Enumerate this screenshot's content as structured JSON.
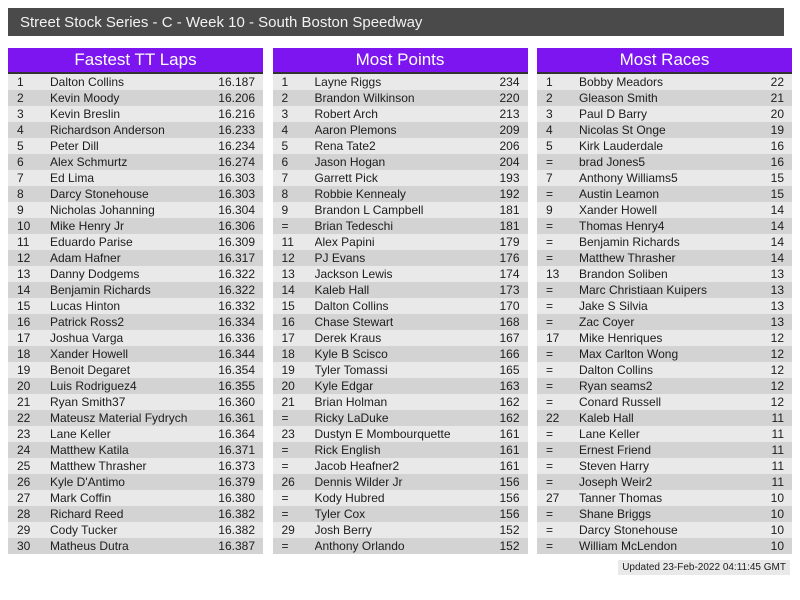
{
  "title": "Street Stock Series - C - Week 10 - South Boston Speedway",
  "footer": {
    "updated": "Updated 23-Feb-2022 04:11:45 GMT"
  },
  "colors": {
    "title_bar": "#4A4A4A",
    "header_accent": "#7C15F0",
    "row_odd": "#E9E9E9",
    "row_even": "#D3D3D3"
  },
  "boards": [
    {
      "title": "Fastest TT Laps",
      "rows": [
        {
          "rank": "1",
          "name": "Dalton Collins",
          "value": "16.187"
        },
        {
          "rank": "2",
          "name": "Kevin Moody",
          "value": "16.206"
        },
        {
          "rank": "3",
          "name": "Kevin Breslin",
          "value": "16.216"
        },
        {
          "rank": "4",
          "name": "Richardson Anderson",
          "value": "16.233"
        },
        {
          "rank": "5",
          "name": "Peter Dill",
          "value": "16.234"
        },
        {
          "rank": "6",
          "name": "Alex Schmurtz",
          "value": "16.274"
        },
        {
          "rank": "7",
          "name": "Ed Lima",
          "value": "16.303"
        },
        {
          "rank": "8",
          "name": "Darcy Stonehouse",
          "value": "16.303"
        },
        {
          "rank": "9",
          "name": "Nicholas Johanning",
          "value": "16.304"
        },
        {
          "rank": "10",
          "name": "Mike Henry Jr",
          "value": "16.306"
        },
        {
          "rank": "11",
          "name": "Eduardo Parise",
          "value": "16.309"
        },
        {
          "rank": "12",
          "name": "Adam Hafner",
          "value": "16.317"
        },
        {
          "rank": "13",
          "name": "Danny Dodgems",
          "value": "16.322"
        },
        {
          "rank": "14",
          "name": "Benjamin Richards",
          "value": "16.322"
        },
        {
          "rank": "15",
          "name": "Lucas Hinton",
          "value": "16.332"
        },
        {
          "rank": "16",
          "name": "Patrick Ross2",
          "value": "16.334"
        },
        {
          "rank": "17",
          "name": "Joshua Varga",
          "value": "16.336"
        },
        {
          "rank": "18",
          "name": "Xander Howell",
          "value": "16.344"
        },
        {
          "rank": "19",
          "name": "Benoit Degaret",
          "value": "16.354"
        },
        {
          "rank": "20",
          "name": "Luis Rodriguez4",
          "value": "16.355"
        },
        {
          "rank": "21",
          "name": "Ryan Smith37",
          "value": "16.360"
        },
        {
          "rank": "22",
          "name": "Mateusz Material Fydrych",
          "value": "16.361"
        },
        {
          "rank": "23",
          "name": "Lane Keller",
          "value": "16.364"
        },
        {
          "rank": "24",
          "name": "Matthew Katila",
          "value": "16.371"
        },
        {
          "rank": "25",
          "name": "Matthew Thrasher",
          "value": "16.373"
        },
        {
          "rank": "26",
          "name": "Kyle D'Antimo",
          "value": "16.379"
        },
        {
          "rank": "27",
          "name": "Mark Coffin",
          "value": "16.380"
        },
        {
          "rank": "28",
          "name": "Richard Reed",
          "value": "16.382"
        },
        {
          "rank": "29",
          "name": "Cody Tucker",
          "value": "16.382"
        },
        {
          "rank": "30",
          "name": "Matheus Dutra",
          "value": "16.387"
        }
      ]
    },
    {
      "title": "Most Points",
      "rows": [
        {
          "rank": "1",
          "name": "Layne Riggs",
          "value": "234"
        },
        {
          "rank": "2",
          "name": "Brandon Wilkinson",
          "value": "220"
        },
        {
          "rank": "3",
          "name": "Robert Arch",
          "value": "213"
        },
        {
          "rank": "4",
          "name": "Aaron Plemons",
          "value": "209"
        },
        {
          "rank": "5",
          "name": "Rena Tate2",
          "value": "206"
        },
        {
          "rank": "6",
          "name": "Jason Hogan",
          "value": "204"
        },
        {
          "rank": "7",
          "name": "Garrett Pick",
          "value": "193"
        },
        {
          "rank": "8",
          "name": "Robbie Kennealy",
          "value": "192"
        },
        {
          "rank": "9",
          "name": "Brandon L Campbell",
          "value": "181"
        },
        {
          "rank": "=",
          "name": "Brian Tedeschi",
          "value": "181"
        },
        {
          "rank": "11",
          "name": "Alex Papini",
          "value": "179"
        },
        {
          "rank": "12",
          "name": "PJ Evans",
          "value": "176"
        },
        {
          "rank": "13",
          "name": "Jackson Lewis",
          "value": "174"
        },
        {
          "rank": "14",
          "name": "Kaleb Hall",
          "value": "173"
        },
        {
          "rank": "15",
          "name": "Dalton Collins",
          "value": "170"
        },
        {
          "rank": "16",
          "name": "Chase Stewart",
          "value": "168"
        },
        {
          "rank": "17",
          "name": "Derek Kraus",
          "value": "167"
        },
        {
          "rank": "18",
          "name": "Kyle B Scisco",
          "value": "166"
        },
        {
          "rank": "19",
          "name": "Tyler Tomassi",
          "value": "165"
        },
        {
          "rank": "20",
          "name": "Kyle Edgar",
          "value": "163"
        },
        {
          "rank": "21",
          "name": "Brian Holman",
          "value": "162"
        },
        {
          "rank": "=",
          "name": "Ricky LaDuke",
          "value": "162"
        },
        {
          "rank": "23",
          "name": "Dustyn E Mombourquette",
          "value": "161"
        },
        {
          "rank": "=",
          "name": "Rick English",
          "value": "161"
        },
        {
          "rank": "=",
          "name": "Jacob Heafner2",
          "value": "161"
        },
        {
          "rank": "26",
          "name": "Dennis Wilder Jr",
          "value": "156"
        },
        {
          "rank": "=",
          "name": "Kody Hubred",
          "value": "156"
        },
        {
          "rank": "=",
          "name": "Tyler Cox",
          "value": "156"
        },
        {
          "rank": "29",
          "name": "Josh Berry",
          "value": "152"
        },
        {
          "rank": "=",
          "name": "Anthony Orlando",
          "value": "152"
        }
      ]
    },
    {
      "title": "Most Races",
      "rows": [
        {
          "rank": "1",
          "name": "Bobby Meadors",
          "value": "22"
        },
        {
          "rank": "2",
          "name": "Gleason Smith",
          "value": "21"
        },
        {
          "rank": "3",
          "name": "Paul D Barry",
          "value": "20"
        },
        {
          "rank": "4",
          "name": "Nicolas St Onge",
          "value": "19"
        },
        {
          "rank": "5",
          "name": "Kirk Lauderdale",
          "value": "16"
        },
        {
          "rank": "=",
          "name": "brad Jones5",
          "value": "16"
        },
        {
          "rank": "7",
          "name": "Anthony Williams5",
          "value": "15"
        },
        {
          "rank": "=",
          "name": "Austin Leamon",
          "value": "15"
        },
        {
          "rank": "9",
          "name": "Xander Howell",
          "value": "14"
        },
        {
          "rank": "=",
          "name": "Thomas Henry4",
          "value": "14"
        },
        {
          "rank": "=",
          "name": "Benjamin Richards",
          "value": "14"
        },
        {
          "rank": "=",
          "name": "Matthew Thrasher",
          "value": "14"
        },
        {
          "rank": "13",
          "name": "Brandon Soliben",
          "value": "13"
        },
        {
          "rank": "=",
          "name": "Marc Christiaan Kuipers",
          "value": "13"
        },
        {
          "rank": "=",
          "name": "Jake S Silvia",
          "value": "13"
        },
        {
          "rank": "=",
          "name": "Zac Coyer",
          "value": "13"
        },
        {
          "rank": "17",
          "name": "Mike Henriques",
          "value": "12"
        },
        {
          "rank": "=",
          "name": "Max Carlton Wong",
          "value": "12"
        },
        {
          "rank": "=",
          "name": "Dalton Collins",
          "value": "12"
        },
        {
          "rank": "=",
          "name": "Ryan seams2",
          "value": "12"
        },
        {
          "rank": "=",
          "name": "Conard Russell",
          "value": "12"
        },
        {
          "rank": "22",
          "name": "Kaleb Hall",
          "value": "11"
        },
        {
          "rank": "=",
          "name": "Lane Keller",
          "value": "11"
        },
        {
          "rank": "=",
          "name": "Ernest Friend",
          "value": "11"
        },
        {
          "rank": "=",
          "name": "Steven Harry",
          "value": "11"
        },
        {
          "rank": "=",
          "name": "Joseph Weir2",
          "value": "11"
        },
        {
          "rank": "27",
          "name": "Tanner Thomas",
          "value": "10"
        },
        {
          "rank": "=",
          "name": "Shane Briggs",
          "value": "10"
        },
        {
          "rank": "=",
          "name": "Darcy Stonehouse",
          "value": "10"
        },
        {
          "rank": "=",
          "name": "William McLendon",
          "value": "10"
        }
      ]
    }
  ]
}
